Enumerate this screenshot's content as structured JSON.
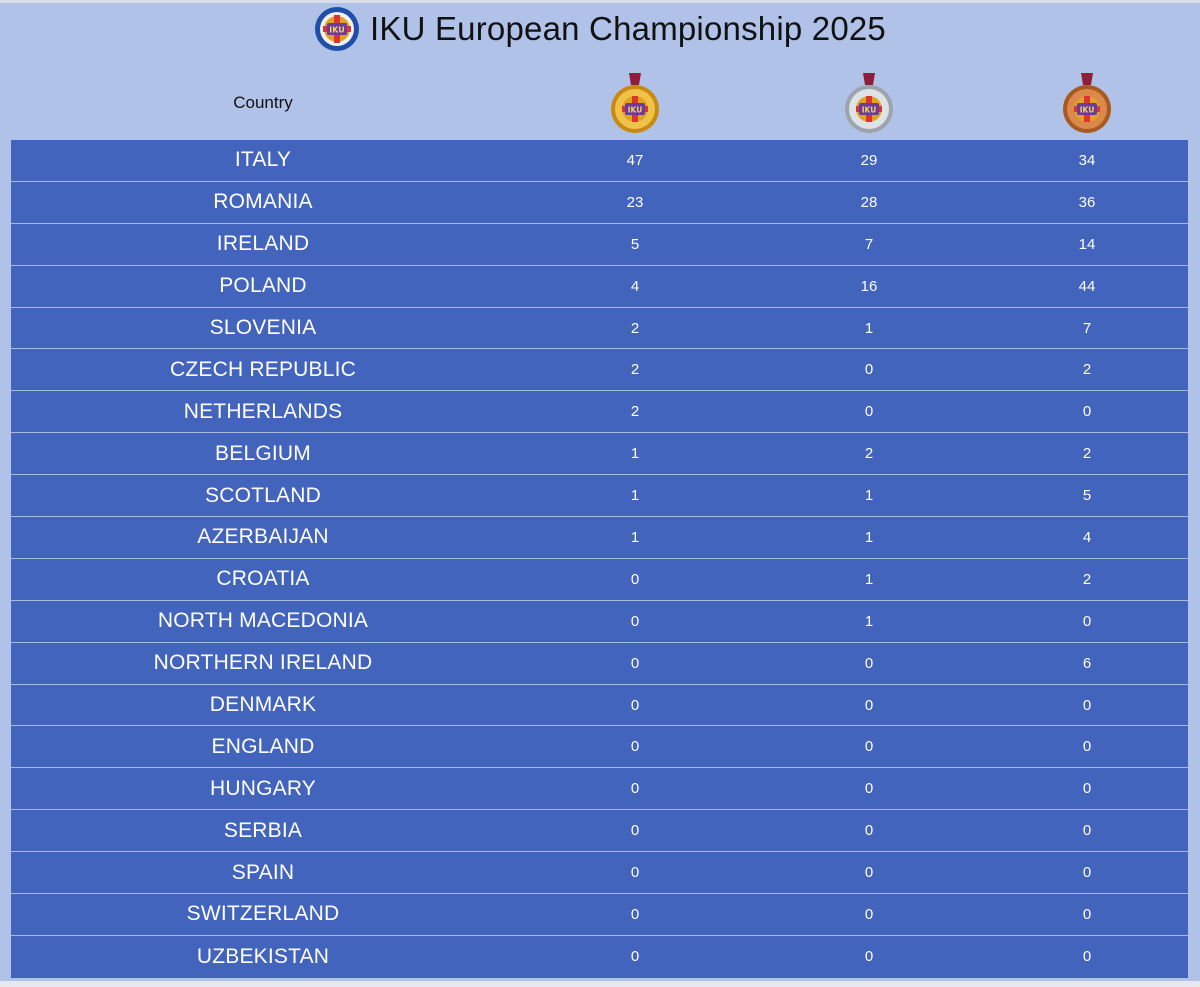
{
  "title": "IKU European Championship 2025",
  "logo_icon": "iku-logo-icon",
  "header": {
    "country_label": "Country",
    "gold_icon": "gold-medal-icon",
    "silver_icon": "silver-medal-icon",
    "bronze_icon": "bronze-medal-icon"
  },
  "colors": {
    "table_bg": "#4264bd",
    "page_bg": "#b1c2e9",
    "row_divider": "#a9b9e2",
    "text_on_table": "#ffffff"
  },
  "rows": [
    {
      "country": "ITALY",
      "gold": "47",
      "silver": "29",
      "bronze": "34"
    },
    {
      "country": "ROMANIA",
      "gold": "23",
      "silver": "28",
      "bronze": "36"
    },
    {
      "country": "IRELAND",
      "gold": "5",
      "silver": "7",
      "bronze": "14"
    },
    {
      "country": "POLAND",
      "gold": "4",
      "silver": "16",
      "bronze": "44"
    },
    {
      "country": "SLOVENIA",
      "gold": "2",
      "silver": "1",
      "bronze": "7"
    },
    {
      "country": "CZECH REPUBLIC",
      "gold": "2",
      "silver": "0",
      "bronze": "2"
    },
    {
      "country": "NETHERLANDS",
      "gold": "2",
      "silver": "0",
      "bronze": "0"
    },
    {
      "country": "BELGIUM",
      "gold": "1",
      "silver": "2",
      "bronze": "2"
    },
    {
      "country": "SCOTLAND",
      "gold": "1",
      "silver": "1",
      "bronze": "5"
    },
    {
      "country": "AZERBAIJAN",
      "gold": "1",
      "silver": "1",
      "bronze": "4"
    },
    {
      "country": "CROATIA",
      "gold": "0",
      "silver": "1",
      "bronze": "2"
    },
    {
      "country": "NORTH MACEDONIA",
      "gold": "0",
      "silver": "1",
      "bronze": "0"
    },
    {
      "country": "NORTHERN IRELAND",
      "gold": "0",
      "silver": "0",
      "bronze": "6"
    },
    {
      "country": "DENMARK",
      "gold": "0",
      "silver": "0",
      "bronze": "0"
    },
    {
      "country": "ENGLAND",
      "gold": "0",
      "silver": "0",
      "bronze": "0"
    },
    {
      "country": "HUNGARY",
      "gold": "0",
      "silver": "0",
      "bronze": "0"
    },
    {
      "country": "SERBIA",
      "gold": "0",
      "silver": "0",
      "bronze": "0"
    },
    {
      "country": "SPAIN",
      "gold": "0",
      "silver": "0",
      "bronze": "0"
    },
    {
      "country": "SWITZERLAND",
      "gold": "0",
      "silver": "0",
      "bronze": "0"
    },
    {
      "country": "UZBEKISTAN",
      "gold": "0",
      "silver": "0",
      "bronze": "0"
    }
  ]
}
